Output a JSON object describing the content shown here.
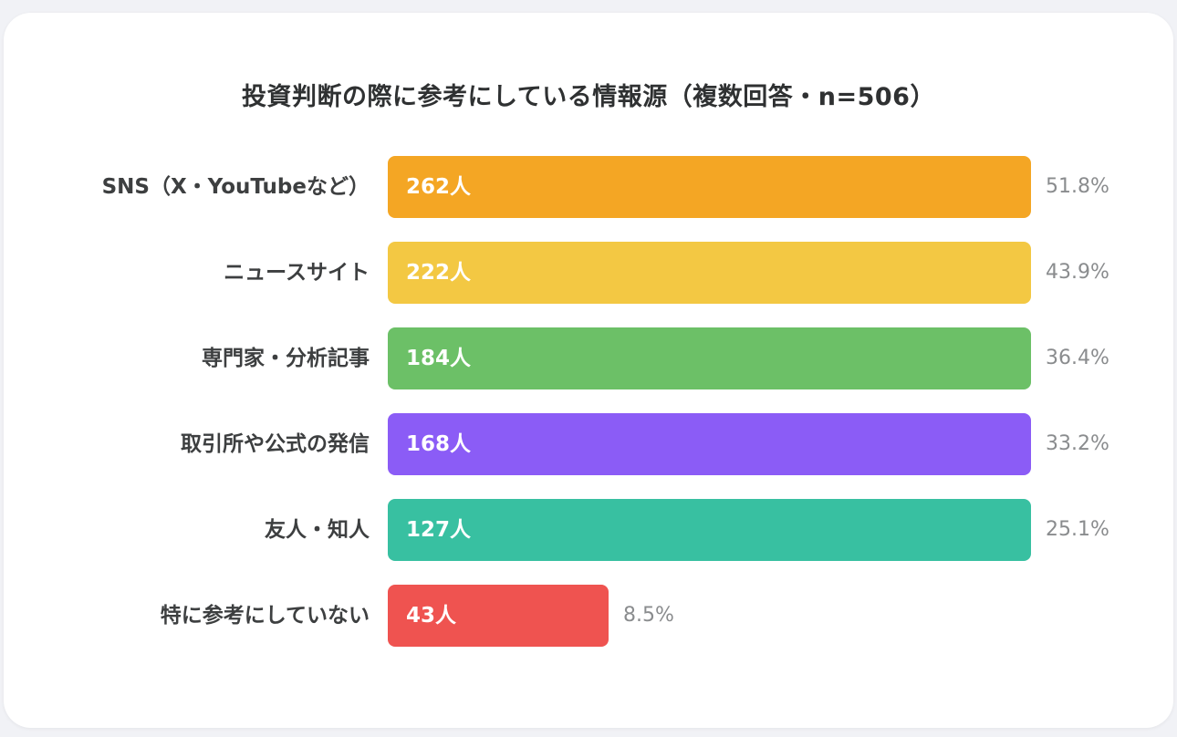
{
  "chart_data": {
    "type": "bar",
    "orientation": "horizontal",
    "title": "投資判断の際に参考にしている情報源（複数回答・n=506）",
    "categories": [
      "SNS（X・YouTubeなど）",
      "ニュースサイト",
      "専門家・分析記事",
      "取引所や公式の発信",
      "友人・知人",
      "特に参考にしていない"
    ],
    "values": [
      262,
      222,
      184,
      168,
      127,
      43
    ],
    "count_labels": [
      "262人",
      "222人",
      "184人",
      "168人",
      "127人",
      "43人"
    ],
    "percent_labels": [
      "51.8%",
      "43.9%",
      "36.4%",
      "33.2%",
      "25.1%",
      "8.5%"
    ],
    "colors": [
      "#f4a624",
      "#f3c843",
      "#6cc067",
      "#8b5cf6",
      "#38c0a1",
      "#ef5350"
    ],
    "grid": false,
    "legend": "none"
  }
}
